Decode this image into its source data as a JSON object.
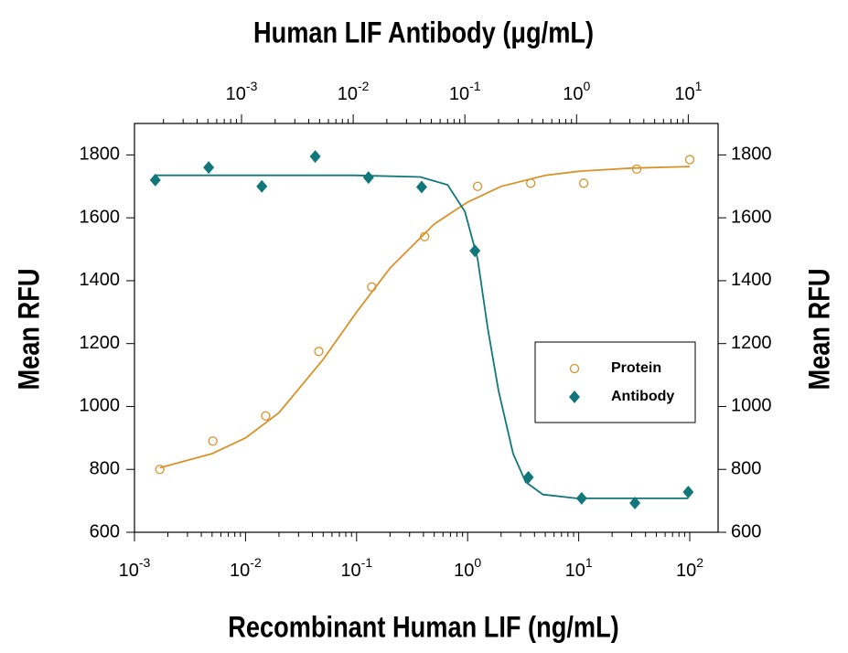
{
  "chart_data": {
    "type": "scatter",
    "title": "Human LIF Antibody (μg/mL)",
    "xlabel": "Recombinant Human LIF (ng/mL)",
    "ylabel": "Mean RFU",
    "y2label": "Mean RFU",
    "xscale": "log",
    "x2scale": "log",
    "xlim": [
      0.001,
      180
    ],
    "x2lim": [
      0.00011,
      18.5
    ],
    "ylim": [
      600,
      1900
    ],
    "y2lim": [
      600,
      1900
    ],
    "xticks": [
      {
        "value": 0.001,
        "label": "10",
        "sup": "-3"
      },
      {
        "value": 0.01,
        "label": "10",
        "sup": "-2"
      },
      {
        "value": 0.1,
        "label": "10",
        "sup": "-1"
      },
      {
        "value": 1,
        "label": "10",
        "sup": "0"
      },
      {
        "value": 10,
        "label": "10",
        "sup": "1"
      },
      {
        "value": 100,
        "label": "10",
        "sup": "2"
      }
    ],
    "x2ticks": [
      {
        "value": 0.001,
        "label": "10",
        "sup": "-3"
      },
      {
        "value": 0.01,
        "label": "10",
        "sup": "-2"
      },
      {
        "value": 0.1,
        "label": "10",
        "sup": "-1"
      },
      {
        "value": 1,
        "label": "10",
        "sup": "0"
      },
      {
        "value": 10,
        "label": "10",
        "sup": "1"
      }
    ],
    "yticks": [
      600,
      800,
      1000,
      1200,
      1400,
      1600,
      1800
    ],
    "y2ticks": [
      600,
      800,
      1000,
      1200,
      1400,
      1600,
      1800
    ],
    "legend": "right",
    "series": [
      {
        "name": "Protein",
        "color": "#d9922a",
        "marker": "circle",
        "axis": "x",
        "x": [
          0.00169,
          0.00508,
          0.0152,
          0.0457,
          0.137,
          0.41,
          1.23,
          3.7,
          11.1,
          33.3,
          100
        ],
        "values": [
          800,
          890,
          970,
          1175,
          1380,
          1540,
          1700,
          1710,
          1710,
          1755,
          1785
        ],
        "curve": {
          "x": [
            0.00169,
            0.005,
            0.01,
            0.02,
            0.05,
            0.1,
            0.2,
            0.5,
            1,
            2,
            5,
            10,
            30,
            100
          ],
          "values": [
            805,
            850,
            900,
            980,
            1150,
            1300,
            1440,
            1580,
            1650,
            1700,
            1735,
            1748,
            1758,
            1763
          ]
        }
      },
      {
        "name": "Antibody",
        "color": "#11777a",
        "marker": "diamond",
        "axis": "x2",
        "x": [
          0.000169,
          0.000508,
          0.00152,
          0.00457,
          0.0137,
          0.041,
          0.123,
          0.37,
          1.11,
          3.33,
          10
        ],
        "values": [
          1720,
          1760,
          1700,
          1795,
          1728,
          1698,
          1495,
          775,
          708,
          693,
          728
        ],
        "curve": {
          "x": [
            0.000169,
            0.01,
            0.04,
            0.07,
            0.1,
            0.13,
            0.16,
            0.2,
            0.27,
            0.35,
            0.5,
            1,
            10
          ],
          "values": [
            1735,
            1735,
            1730,
            1705,
            1620,
            1470,
            1250,
            1050,
            850,
            760,
            720,
            708,
            708
          ]
        }
      }
    ]
  }
}
